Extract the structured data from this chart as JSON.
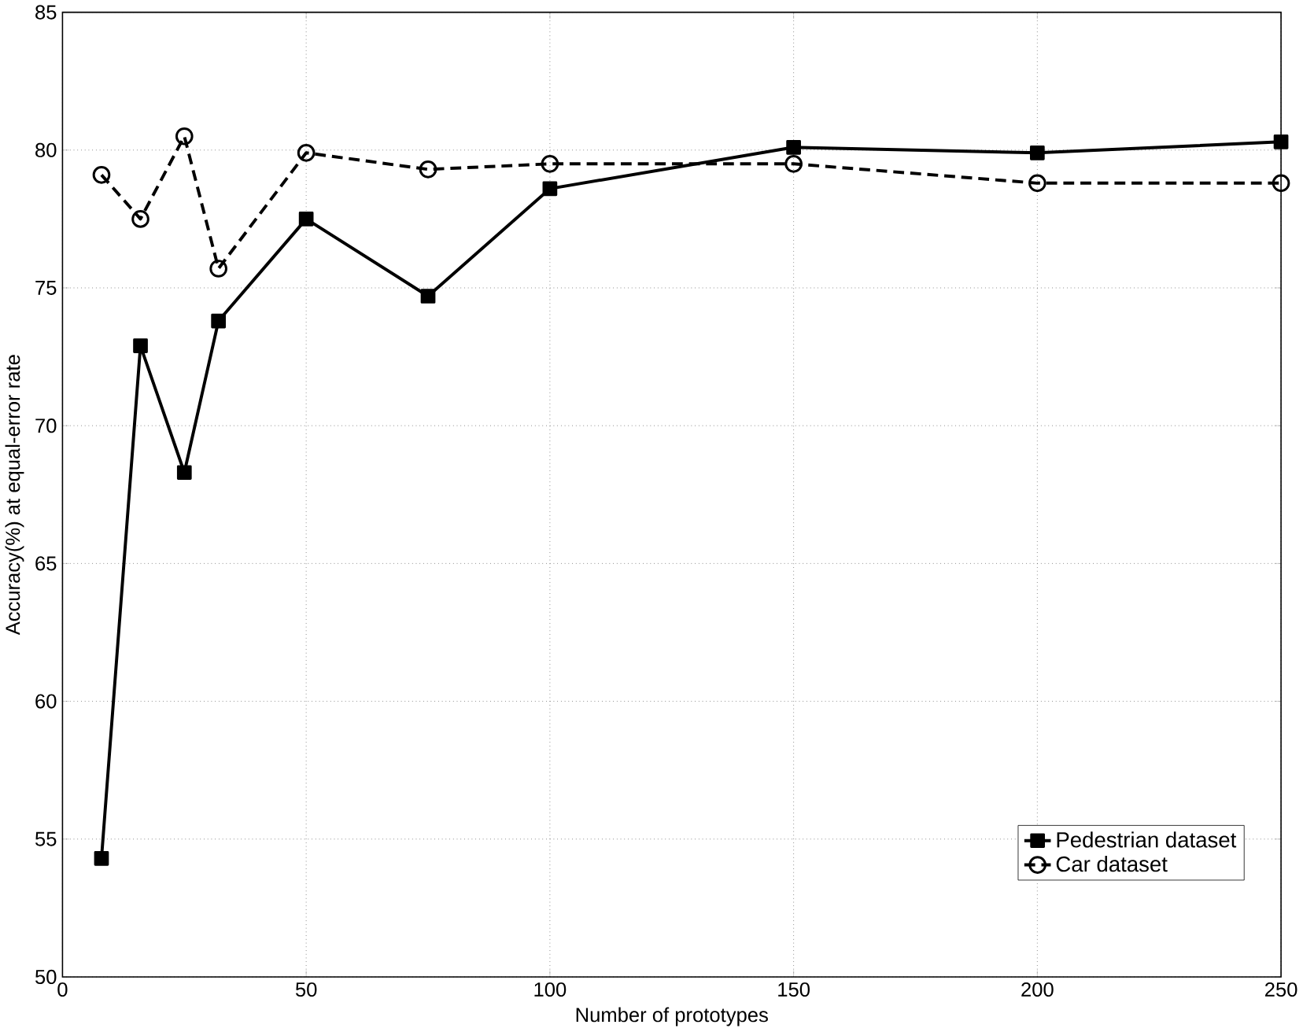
{
  "chart_data": {
    "type": "line",
    "xlabel": "Number of prototypes",
    "ylabel": "Accuracy(%) at equal-error rate",
    "x": [
      8,
      16,
      25,
      32,
      50,
      75,
      100,
      150,
      200,
      250
    ],
    "xlim": [
      0,
      250
    ],
    "xticks": [
      0,
      50,
      100,
      150,
      200,
      250
    ],
    "ylim": [
      50,
      85
    ],
    "yticks": [
      50,
      55,
      60,
      65,
      70,
      75,
      80,
      85
    ],
    "grid": true,
    "legend": "bottom right",
    "series": [
      {
        "name": "Pedestrian dataset",
        "color": "#000000",
        "marker": "square",
        "line_style": "solid",
        "values": [
          54.3,
          72.9,
          68.3,
          73.8,
          77.5,
          74.7,
          78.6,
          80.1,
          79.9,
          80.3
        ]
      },
      {
        "name": "Car dataset",
        "color": "#000000",
        "marker": "circle",
        "line_style": "dashed",
        "values": [
          79.1,
          77.5,
          80.5,
          75.7,
          79.9,
          79.3,
          79.5,
          79.5,
          78.8,
          78.8
        ]
      }
    ]
  }
}
